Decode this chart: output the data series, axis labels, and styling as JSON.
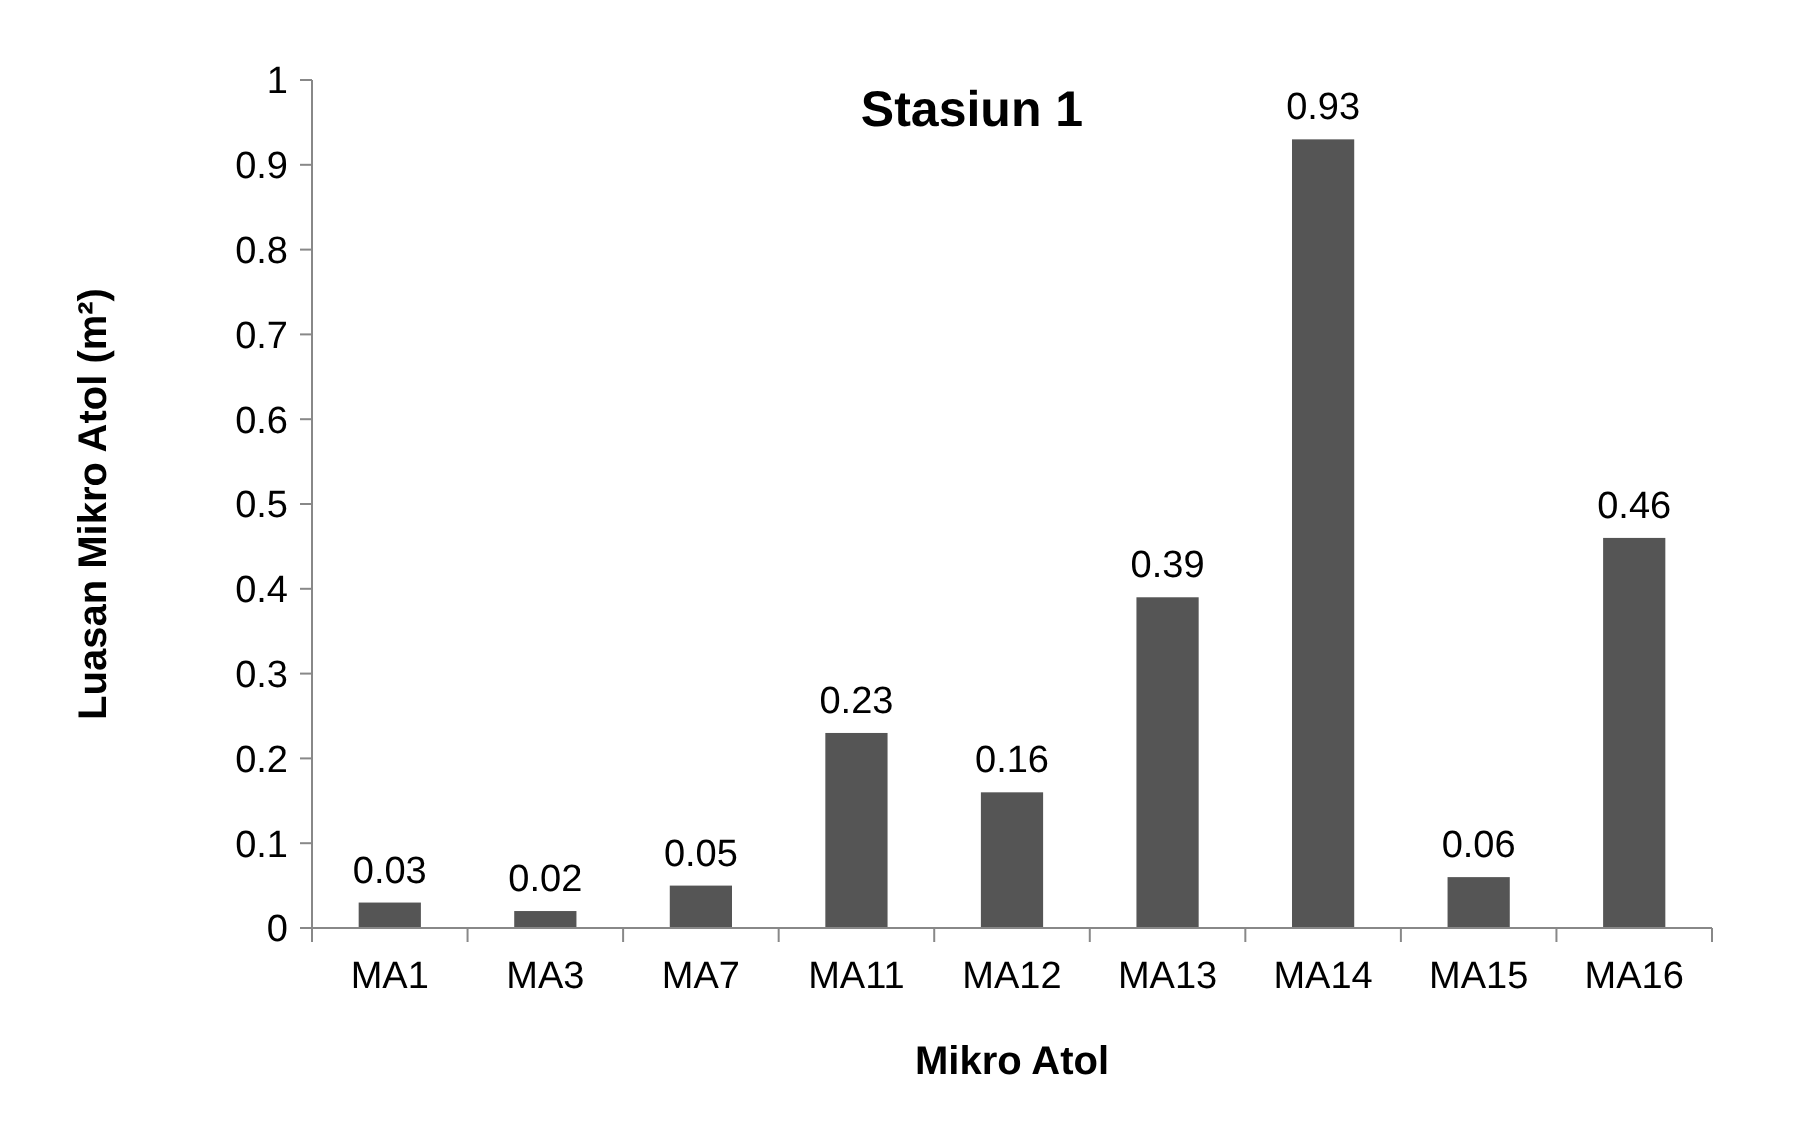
{
  "chart_data": {
    "type": "bar",
    "title": "Stasiun 1",
    "xlabel": "Mikro Atol",
    "ylabel": "Luasan Mikro Atol (m²)",
    "categories": [
      "MA1",
      "MA3",
      "MA7",
      "MA11",
      "MA12",
      "MA13",
      "MA14",
      "MA15",
      "MA16"
    ],
    "values": [
      0.03,
      0.02,
      0.05,
      0.23,
      0.16,
      0.39,
      0.93,
      0.06,
      0.46
    ],
    "color": "#555555",
    "ylim": [
      0,
      1
    ],
    "yticks": [
      0,
      0.1,
      0.2,
      0.3,
      0.4,
      0.5,
      0.6,
      0.7,
      0.8,
      0.9,
      1
    ],
    "grid": false,
    "data_labels": true
  }
}
